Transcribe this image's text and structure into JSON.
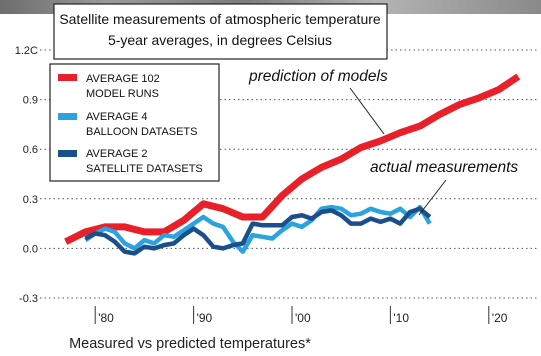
{
  "chart_data": {
    "type": "line",
    "title": "Satellite measurements of atmospheric temperature",
    "subtitle": "5-year averages, in degrees Celsius",
    "footer": "Measured vs predicted temperatures*",
    "xlim": [
      1975,
      2025
    ],
    "ylim": [
      -0.3,
      1.2
    ],
    "x_ticks": [
      {
        "value": 1980,
        "label": "'80"
      },
      {
        "value": 1990,
        "label": "'90"
      },
      {
        "value": 2000,
        "label": "'00"
      },
      {
        "value": 2010,
        "label": "'10"
      },
      {
        "value": 2020,
        "label": "'20"
      }
    ],
    "y_ticks": [
      {
        "value": -0.3,
        "label": "-0.3"
      },
      {
        "value": 0,
        "label": "0.0"
      },
      {
        "value": 0.3,
        "label": "0.3"
      },
      {
        "value": 0.6,
        "label": "0.6"
      },
      {
        "value": 0.9,
        "label": "0.9"
      },
      {
        "value": 1.2,
        "label": "1.2C"
      }
    ],
    "legend_position": "top-left",
    "annotations": [
      "prediction of models",
      "actual measurements"
    ],
    "series": [
      {
        "name_lines": [
          "AVERAGE 102",
          "MODEL RUNS"
        ],
        "color": "#e8202a",
        "x": [
          1977,
          1979,
          1981,
          1983,
          1985,
          1987,
          1989,
          1991,
          1993,
          1995,
          1997,
          1999,
          2001,
          2003,
          2005,
          2007,
          2009,
          2011,
          2013,
          2015,
          2017,
          2019,
          2021,
          2023
        ],
        "y": [
          0.04,
          0.1,
          0.13,
          0.13,
          0.1,
          0.1,
          0.17,
          0.27,
          0.24,
          0.19,
          0.19,
          0.32,
          0.42,
          0.49,
          0.54,
          0.61,
          0.65,
          0.7,
          0.74,
          0.81,
          0.87,
          0.91,
          0.96,
          1.04
        ]
      },
      {
        "name_lines": [
          "AVERAGE 4",
          "BALLOON DATASETS"
        ],
        "color": "#2ba3dd",
        "x": [
          1979,
          1980,
          1981,
          1982,
          1983,
          1984,
          1985,
          1986,
          1987,
          1988,
          1989,
          1990,
          1991,
          1992,
          1993,
          1994,
          1995,
          1996,
          1997,
          1998,
          1999,
          2000,
          2001,
          2002,
          2003,
          2004,
          2005,
          2006,
          2007,
          2008,
          2009,
          2010,
          2011,
          2012,
          2013,
          2014
        ],
        "y": [
          0.05,
          0.09,
          0.12,
          0.1,
          0.03,
          0.0,
          0.05,
          0.03,
          0.08,
          0.07,
          0.11,
          0.15,
          0.19,
          0.15,
          0.13,
          0.04,
          -0.02,
          0.08,
          0.07,
          0.06,
          0.11,
          0.15,
          0.13,
          0.17,
          0.24,
          0.25,
          0.24,
          0.2,
          0.21,
          0.24,
          0.22,
          0.21,
          0.24,
          0.19,
          0.25,
          0.15
        ]
      },
      {
        "name_lines": [
          "AVERAGE 2",
          "SATELLITE DATASETS"
        ],
        "color": "#1b4f8c",
        "x": [
          1979,
          1980,
          1981,
          1982,
          1983,
          1984,
          1985,
          1986,
          1987,
          1988,
          1989,
          1990,
          1991,
          1992,
          1993,
          1994,
          1995,
          1996,
          1997,
          1998,
          1999,
          2000,
          2001,
          2002,
          2003,
          2004,
          2005,
          2006,
          2007,
          2008,
          2009,
          2010,
          2011,
          2012,
          2013,
          2014
        ],
        "y": [
          0.06,
          0.09,
          0.08,
          0.04,
          -0.02,
          -0.03,
          0.01,
          0.0,
          0.02,
          0.03,
          0.08,
          0.12,
          0.08,
          0.01,
          0.0,
          0.02,
          0.03,
          0.15,
          0.14,
          0.14,
          0.14,
          0.19,
          0.2,
          0.18,
          0.22,
          0.23,
          0.2,
          0.15,
          0.15,
          0.18,
          0.16,
          0.18,
          0.15,
          0.22,
          0.24,
          0.19
        ]
      }
    ]
  }
}
